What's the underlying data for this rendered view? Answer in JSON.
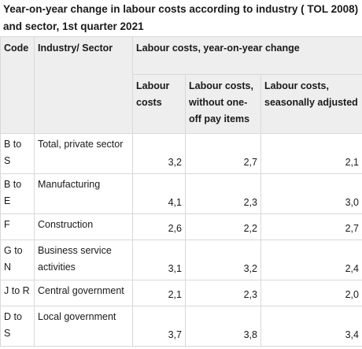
{
  "title": "Year-on-year change in labour costs according to industry ( TOL 2008) and sector, 1st quarter 2021",
  "header": {
    "code": "Code",
    "industry": "Industry/ Sector",
    "group": "Labour costs, year-on-year change",
    "col_labour": "Labour costs",
    "col_without": "Labour costs, without one-off pay items",
    "col_seasonal": "Labour costs, seasonally adjusted"
  },
  "rows": [
    {
      "code": "B to S",
      "sector": "Total, private sector",
      "labour": "3,2",
      "without": "2,7",
      "seasonal": "2,1"
    },
    {
      "code": "B to E",
      "sector": "Manufacturing",
      "labour": "4,1",
      "without": "2,3",
      "seasonal": "3,0"
    },
    {
      "code": "F",
      "sector": "Construction",
      "labour": "2,6",
      "without": "2,2",
      "seasonal": "2,7"
    },
    {
      "code": "G to N",
      "sector": "Business service activities",
      "labour": "3,1",
      "without": "3,2",
      "seasonal": "2,4"
    },
    {
      "code": "J to R",
      "sector": "Central government",
      "labour": "2,1",
      "without": "2,3",
      "seasonal": "2,0"
    },
    {
      "code": "D to S",
      "sector": "Local government",
      "labour": "3,7",
      "without": "3,8",
      "seasonal": "3,4"
    }
  ]
}
